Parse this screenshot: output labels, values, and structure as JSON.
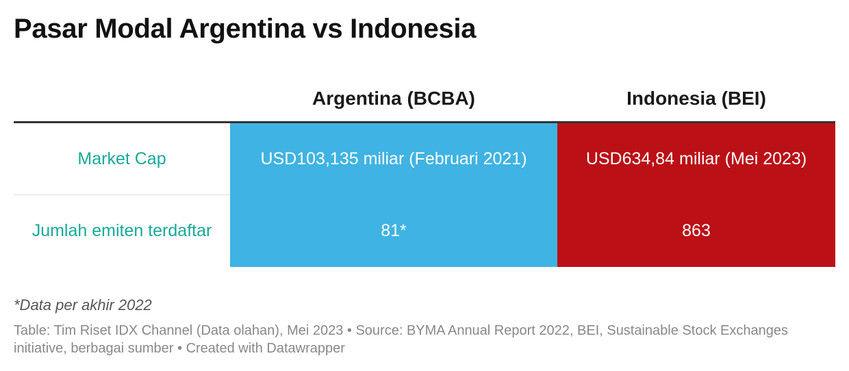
{
  "title": "Pasar Modal Argentina vs Indonesia",
  "chart_data": {
    "type": "table",
    "columns": [
      "",
      "Argentina (BCBA)",
      "Indonesia (BEI)"
    ],
    "rows": [
      {
        "label": "Market Cap",
        "argentina": "USD103,135 miliar (Februari 2021)",
        "indonesia": "USD634,84 miliar (Mei 2023)"
      },
      {
        "label": "Jumlah emiten terdaftar",
        "argentina": "81*",
        "indonesia": "863"
      }
    ],
    "colors": {
      "argentina": "#3fb3e3",
      "indonesia": "#bb1016",
      "row_label": "#18a999"
    }
  },
  "footnote": "*Data per akhir 2022",
  "source": "Table: Tim Riset IDX Channel (Data olahan), Mei 2023 • Source: BYMA Annual Report 2022, BEI, Sustainable Stock Exchanges initiative, berbagai sumber • Created with Datawrapper"
}
